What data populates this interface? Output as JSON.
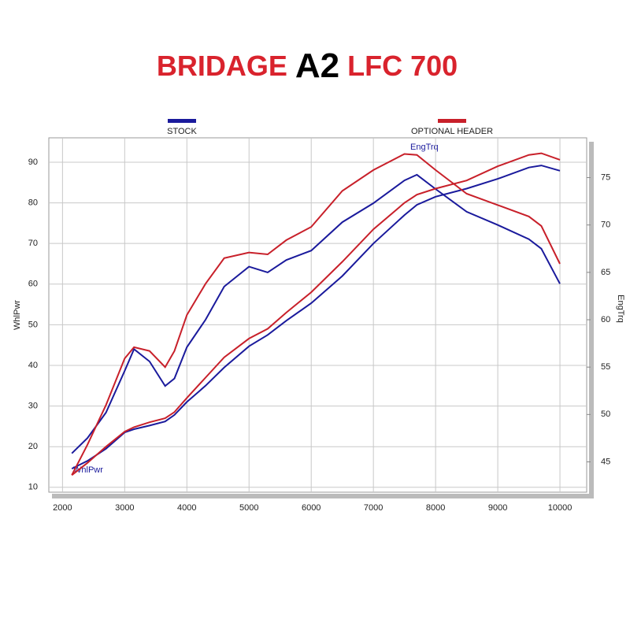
{
  "chart_data": {
    "type": "line",
    "title_parts": [
      "BRIDAGE",
      "A2",
      "LFC 700"
    ],
    "y_label": "WhlPwr",
    "y2_label": "EngTrq",
    "annotations": [
      "EngTrq",
      "WhlPwr"
    ],
    "x": [
      2150,
      2400,
      2700,
      3000,
      3150,
      3400,
      3650,
      3800,
      4000,
      4300,
      4600,
      5000,
      5300,
      5600,
      6000,
      6500,
      7000,
      7500,
      7700,
      8000,
      8500,
      9000,
      9500,
      9700,
      10000
    ],
    "series": [
      {
        "name": "STOCK",
        "color": "#1a1a9c",
        "power": [
          14.6,
          16.5,
          19.5,
          23.5,
          24.3,
          25.2,
          26.2,
          27.8,
          31,
          35,
          39.5,
          44.7,
          47.5,
          51,
          55.3,
          62,
          70,
          77,
          79.5,
          81.5,
          83.5,
          85.9,
          88.7,
          89.2,
          87.9
        ],
        "torque": [
          45.9,
          47.5,
          50.2,
          54.6,
          56.9,
          55.6,
          53.0,
          53.8,
          57.1,
          60,
          63.5,
          65.6,
          65.0,
          66.3,
          67.3,
          70.3,
          72.3,
          74.7,
          75.3,
          73.8,
          71.4,
          70.0,
          68.5,
          67.5,
          63.8
        ]
      },
      {
        "name": "OPTIONAL HEADER",
        "color": "#c8202a",
        "power": [
          13,
          16,
          20,
          23.7,
          24.8,
          26,
          27,
          28.5,
          32,
          37,
          42,
          46.6,
          49,
          53,
          58,
          65.5,
          73.5,
          80,
          82,
          83.5,
          85.5,
          89,
          91.8,
          92.2,
          90.6
        ],
        "torque": [
          43.6,
          46.8,
          51,
          55.9,
          57.1,
          56.7,
          55.0,
          56.7,
          60.5,
          63.8,
          66.5,
          67.1,
          66.9,
          68.4,
          69.8,
          73.6,
          75.8,
          77.5,
          77.4,
          75.8,
          73.3,
          72.1,
          70.9,
          69.9,
          65.9
        ]
      }
    ],
    "xlim": [
      1780,
      10430
    ],
    "xticks": [
      2000,
      3000,
      4000,
      5000,
      6000,
      7000,
      8000,
      9000,
      10000
    ],
    "ylim": [
      8.8,
      96
    ],
    "yticks": [
      10,
      20,
      30,
      40,
      50,
      60,
      70,
      80,
      90
    ],
    "y2lim": [
      41.8,
      79.2
    ],
    "y2ticks": [
      45,
      50,
      55,
      60,
      65,
      70,
      75
    ],
    "grid": true
  }
}
